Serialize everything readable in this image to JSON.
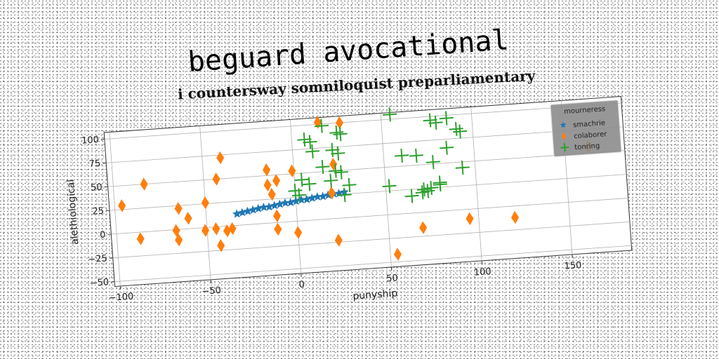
{
  "chart_data": {
    "type": "scatter",
    "title": "beguard avocational",
    "subtitle": "i countersway somniloquist preparliamentary",
    "xlabel": "punyship",
    "ylabel": "alethiological",
    "xlim": [
      -103,
      183
    ],
    "ylim": [
      -55,
      107
    ],
    "xticks": [
      -100,
      -50,
      0,
      50,
      100,
      150
    ],
    "yticks": [
      -50,
      -25,
      0,
      25,
      50,
      75,
      100
    ],
    "xtick_labels": [
      "−100",
      "−50",
      "0",
      "50",
      "100",
      "150"
    ],
    "ytick_labels": [
      "−50",
      "−25",
      "0",
      "25",
      "50",
      "75",
      "100"
    ],
    "grid": true,
    "legend": {
      "title": "mourneress",
      "position": "top-right",
      "entries": [
        "smachrie",
        "colaborer",
        "tonring"
      ]
    },
    "series": [
      {
        "name": "smachrie",
        "color": "#1f77b4",
        "marker": "star",
        "x": [
          -33,
          -30,
          -27,
          -24,
          -21,
          -18,
          -15,
          -12,
          -9,
          -6,
          -3,
          0,
          3,
          6,
          9,
          12,
          15,
          18,
          21,
          24,
          27
        ],
        "y": [
          12,
          13,
          14,
          15,
          16,
          17,
          17,
          18,
          19,
          20,
          20,
          21,
          22,
          22,
          23,
          24,
          24,
          25,
          26,
          26,
          27
        ]
      },
      {
        "name": "colaborer",
        "color": "#ff7f0e",
        "marker": "diamond",
        "x": [
          15,
          27,
          -40,
          -15,
          -43,
          -1,
          -83,
          22,
          -10,
          -15,
          -96,
          -13,
          -50,
          20,
          -65,
          -60,
          -11,
          -67,
          -87,
          -45,
          -51,
          -36,
          -39,
          -11,
          -66,
          0,
          69,
          95,
          120,
          -43,
          22,
          54,
          163
        ],
        "y": [
          102,
          100,
          72,
          56,
          50,
          53,
          50,
          57,
          44,
          40,
          29,
          30,
          26,
          27,
          22,
          11,
          7,
          -1,
          -7,
          -2,
          -3,
          -3,
          -5,
          -7,
          -11,
          -12,
          -16,
          -10,
          -12,
          -20,
          -23,
          -42,
          57
        ]
      },
      {
        "name": "tonring",
        "color": "#2ca02c",
        "marker": "plus",
        "x": [
          7,
          17,
          25,
          27,
          10,
          55,
          77,
          80,
          86,
          91,
          93,
          11,
          22,
          25,
          60,
          68,
          85,
          16,
          23,
          26,
          77,
          93,
          4,
          8,
          20,
          0,
          30,
          52,
          75,
          80,
          80,
          71,
          73,
          64,
          2,
          27,
          70
        ],
        "y": [
          85,
          98,
          90,
          88,
          82,
          105,
          96,
          93,
          97,
          85,
          82,
          72,
          72,
          68,
          61,
          60,
          66,
          55,
          50,
          48,
          52,
          44,
          43,
          38,
          40,
          32,
          34,
          30,
          25,
          30,
          28,
          24,
          22,
          18,
          27,
          24,
          21
        ]
      }
    ]
  }
}
